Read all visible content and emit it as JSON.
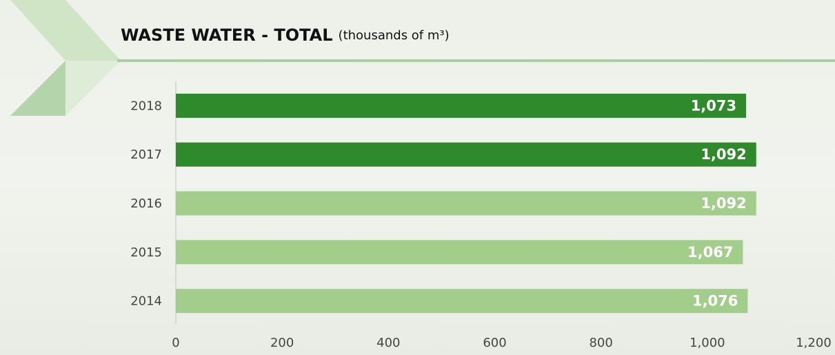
{
  "chart_data": {
    "type": "hbar",
    "title": "WASTE WATER - TOTAL",
    "subtitle": "(thousands of m³)",
    "categories": [
      "2018",
      "2017",
      "2016",
      "2015",
      "2014"
    ],
    "values": [
      1073,
      1092,
      1092,
      1067,
      1076
    ],
    "value_labels": [
      "1,073",
      "1,092",
      "1,092",
      "1,067",
      "1,076"
    ],
    "colors": [
      "#2f8a2c",
      "#2f8a2c",
      "#a3cd8b",
      "#a3cd8b",
      "#a3cd8b"
    ],
    "xlim": [
      0,
      1200
    ],
    "xticks": [
      0,
      200,
      400,
      600,
      800,
      {
        "value": 1000,
        "label": "1,000"
      },
      {
        "value": 1200,
        "label": "1,200"
      }
    ]
  }
}
